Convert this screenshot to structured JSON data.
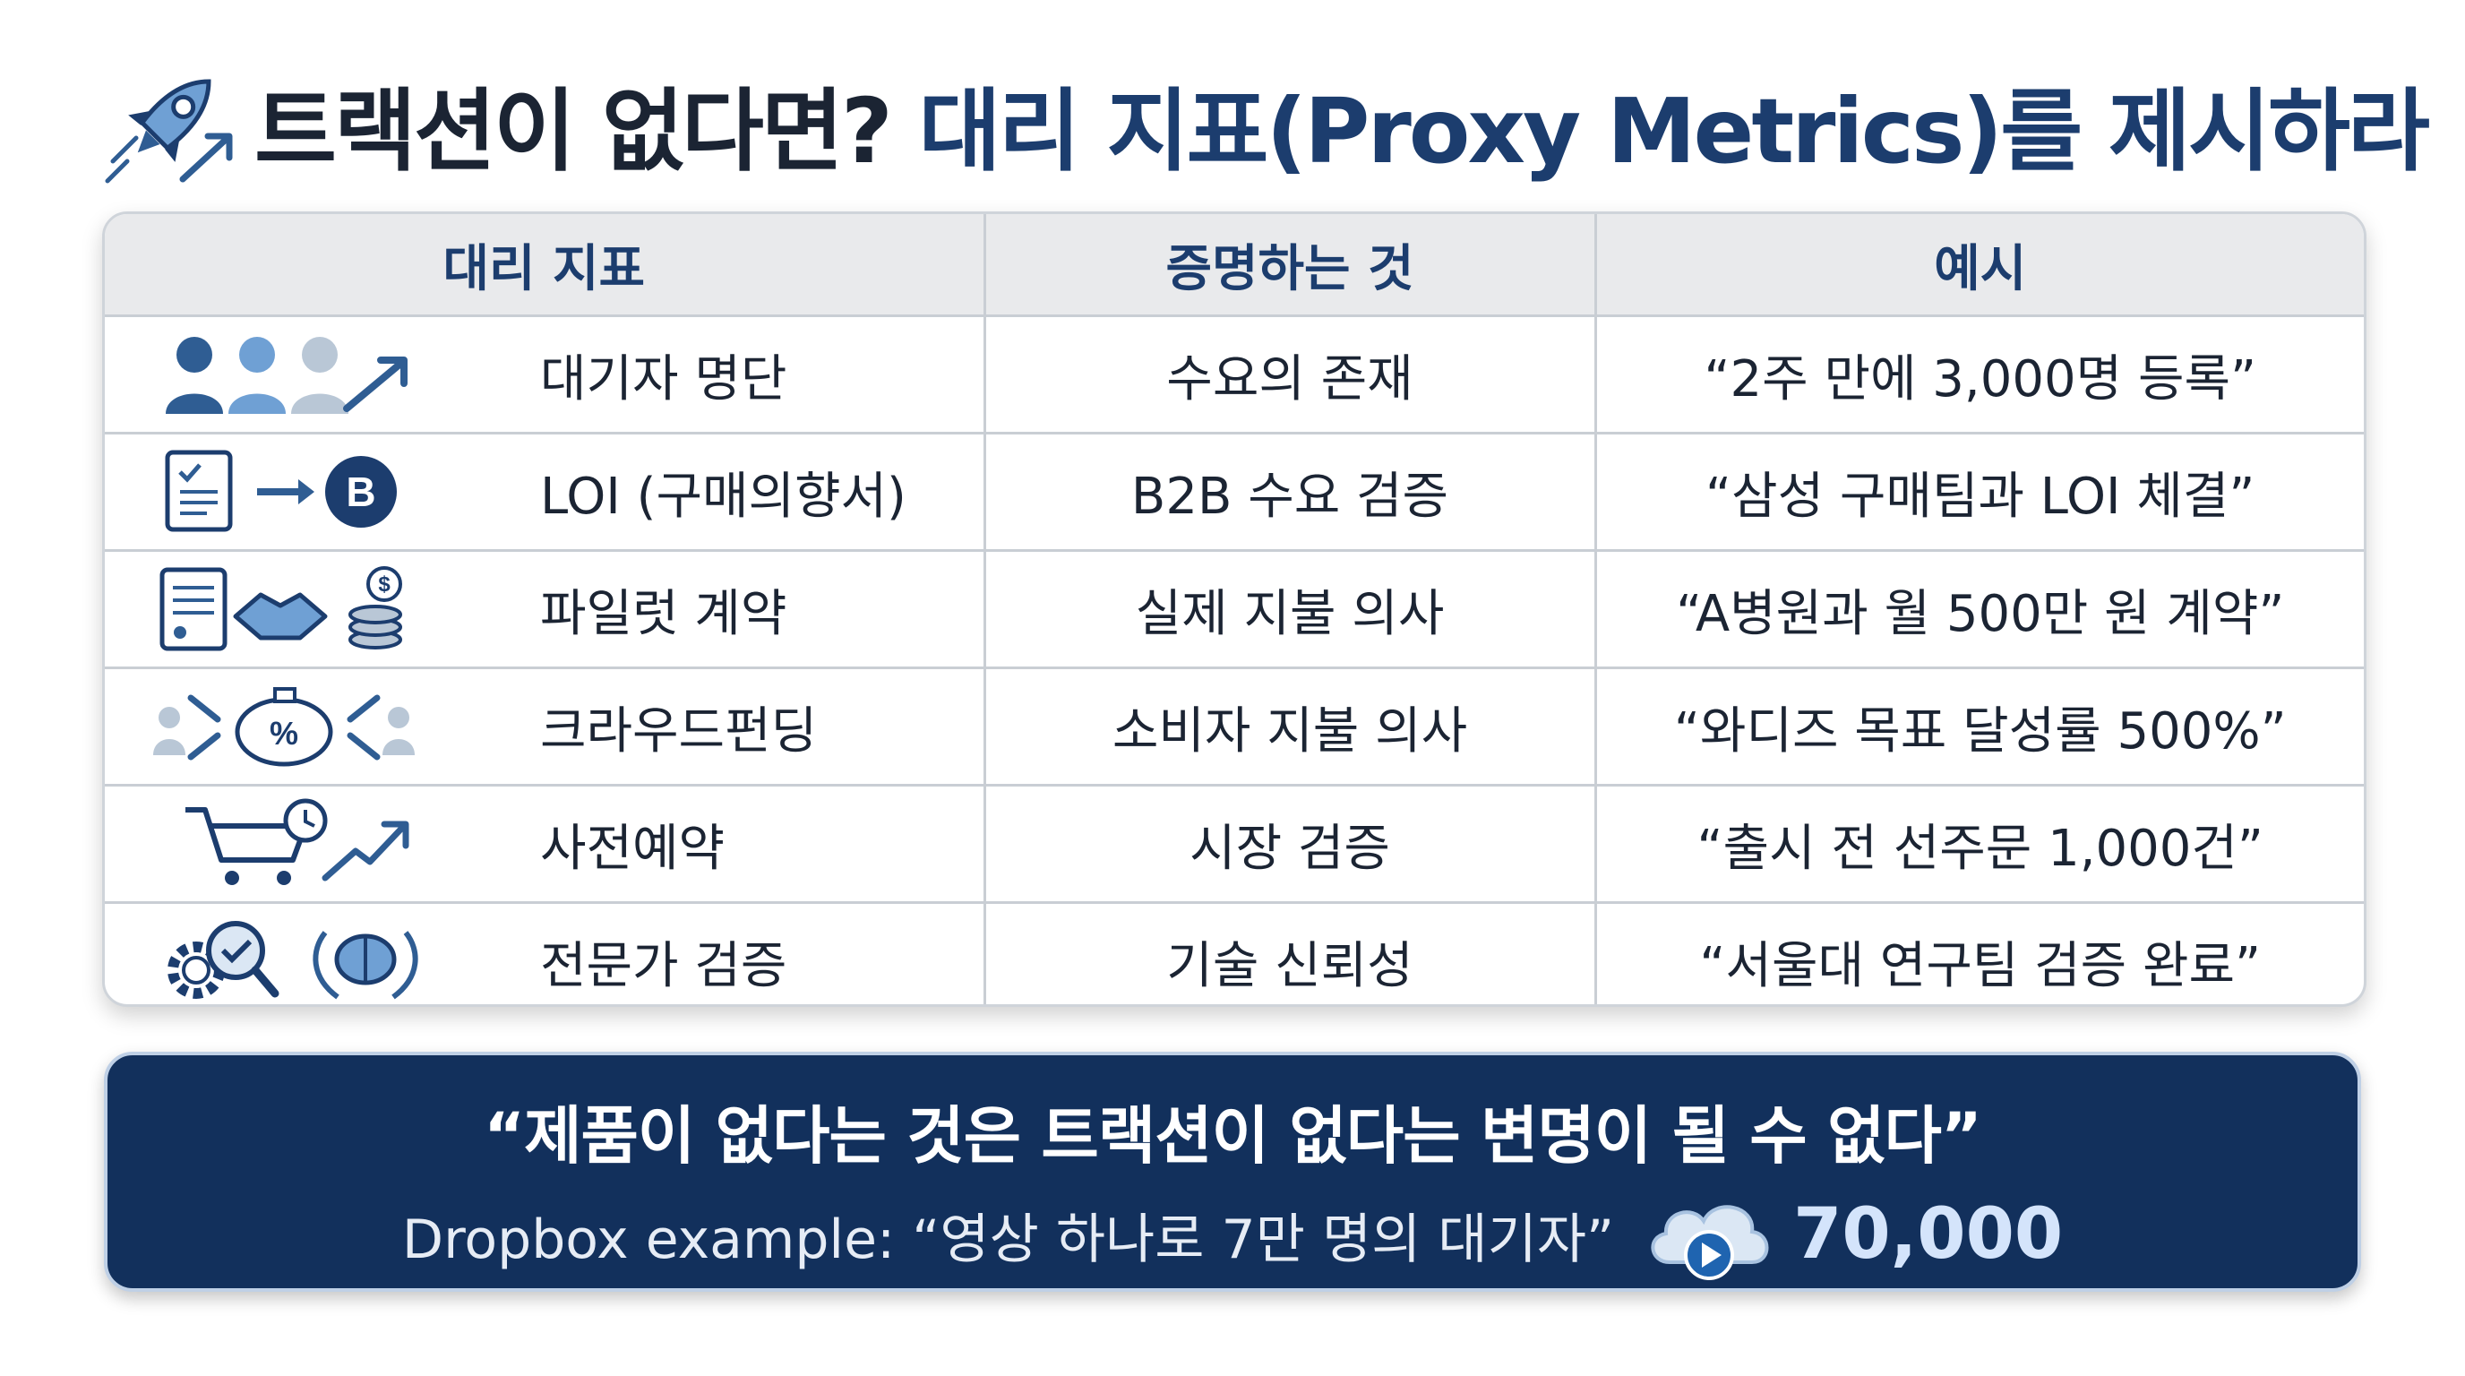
{
  "title": {
    "part1": "트랙션이 없다면?",
    "part2": "대리 지표(Proxy Metrics)를 제시하라",
    "icon": "rocket-icon"
  },
  "table": {
    "headers": [
      "대리 지표",
      "증명하는 것",
      "예시"
    ],
    "rows": [
      {
        "icon": "people-growth-icon",
        "metric": "대기자 명단",
        "proves": "수요의 존재",
        "example": "“2주 만에 3,000명 등록”"
      },
      {
        "icon": "document-to-b2b-icon",
        "metric": "LOI (구매의향서)",
        "proves": "B2B 수요 검증",
        "example": "“삼성 구매팀과 LOI 체결”"
      },
      {
        "icon": "contract-handshake-coins-icon",
        "metric": "파일럿 계약",
        "proves": "실제 지불 의사",
        "example": "“A병원과 월 500만 원 계약”"
      },
      {
        "icon": "crowd-piggybank-icon",
        "metric": "크라우드펀딩",
        "proves": "소비자 지불 의사",
        "example": "“와디즈 목표 달성률 500%”"
      },
      {
        "icon": "cart-clock-growth-icon",
        "metric": "사전예약",
        "proves": "시장 검증",
        "example": "“출시 전 선주문 1,000건”"
      },
      {
        "icon": "gear-magnifier-brain-laurel-icon",
        "metric": "전문가 검증",
        "proves": "기술 신뢰성",
        "example": "“서울대 연구팀 검증 완료”"
      }
    ]
  },
  "banner": {
    "quote": "“제품이 없다는 것은 트랙션이 없다는 변명이 될 수 없다”",
    "example": "Dropbox example: “영상 하나로 7만 명의 대기자”",
    "icon": "cloud-play-icon",
    "number": "70,000"
  },
  "colors": {
    "navy": "#12305c",
    "title_blue": "#1c3d6e",
    "icon_blue": "#2f5d93",
    "light_blue": "#6fa0d4"
  }
}
